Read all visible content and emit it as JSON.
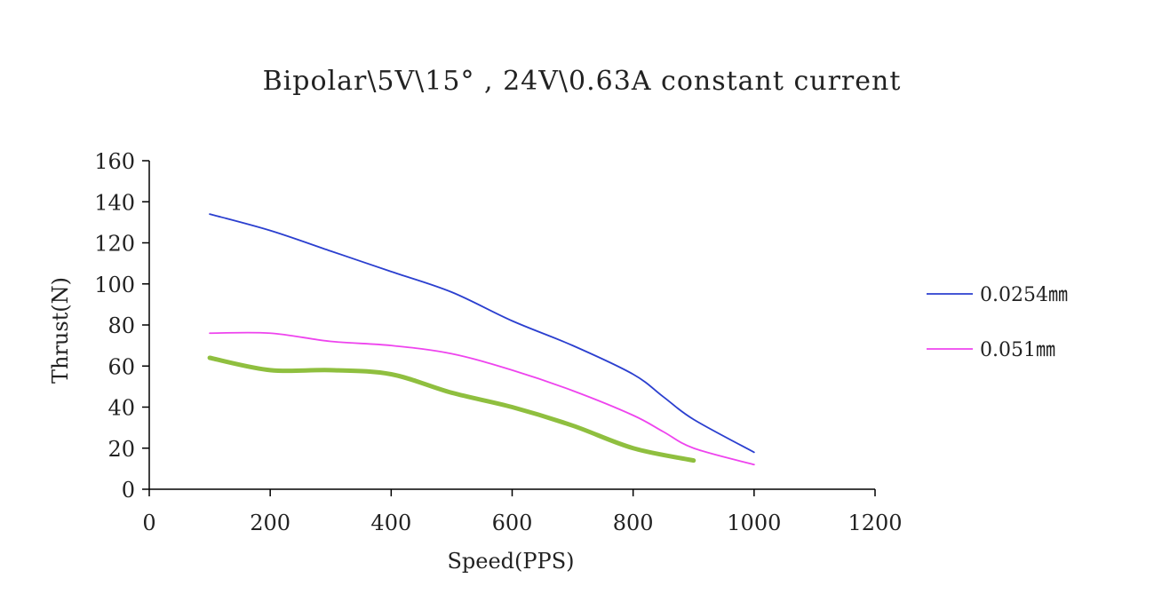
{
  "chart_data": {
    "type": "line",
    "title": "Bipolar\\5V\\15° , 24V\\0.63A constant current",
    "xlabel": "Speed(PPS)",
    "ylabel": "Thrust(N)",
    "xlim": [
      0,
      1200
    ],
    "ylim": [
      0,
      160
    ],
    "xticks": [
      0,
      200,
      400,
      600,
      800,
      1000,
      1200
    ],
    "yticks": [
      0,
      20,
      40,
      60,
      80,
      100,
      120,
      140,
      160
    ],
    "grid": false,
    "legend_position": "right",
    "series": [
      {
        "name": "0.0254㎜",
        "color": "#2b3fcf",
        "x": [
          100,
          200,
          300,
          400,
          500,
          600,
          700,
          800,
          850,
          900,
          1000
        ],
        "y": [
          134,
          126,
          116,
          106,
          96,
          82,
          70,
          56,
          45,
          34,
          18
        ]
      },
      {
        "name": "0.051㎜",
        "color": "#ee44ee",
        "x": [
          100,
          200,
          300,
          400,
          500,
          600,
          700,
          800,
          850,
          900,
          1000
        ],
        "y": [
          76,
          76,
          72,
          70,
          66,
          58,
          48,
          36,
          28,
          20,
          12
        ]
      },
      {
        "name": "",
        "color": "#8fbf3f",
        "x": [
          100,
          200,
          300,
          400,
          500,
          600,
          700,
          800,
          900
        ],
        "y": [
          64,
          58,
          58,
          56,
          47,
          40,
          31,
          20,
          14
        ]
      }
    ]
  }
}
